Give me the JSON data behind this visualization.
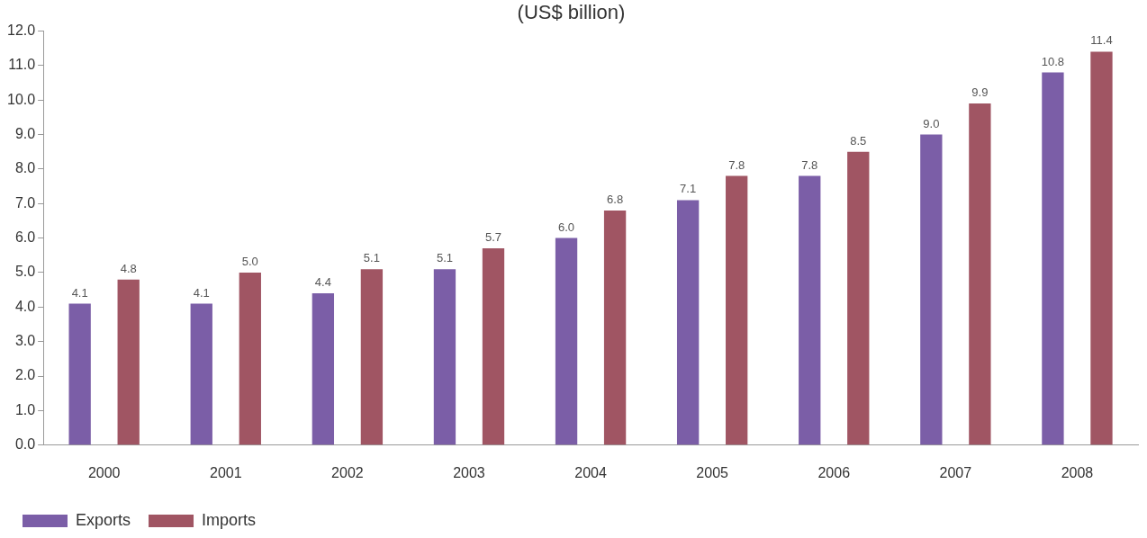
{
  "chart_data": {
    "type": "bar",
    "title": "(US$ billion)",
    "categories": [
      "2000",
      "2001",
      "2002",
      "2003",
      "2004",
      "2005",
      "2006",
      "2007",
      "2008"
    ],
    "series": [
      {
        "name": "Exports",
        "color": "#7b5ea7",
        "values": [
          4.1,
          4.1,
          4.4,
          5.1,
          6.0,
          7.1,
          7.8,
          9.0,
          10.8
        ],
        "value_labels": [
          "4.1",
          "4.1",
          "4.4",
          "5.1",
          "6.0",
          "7.1",
          "7.8",
          "9.0",
          "10.8"
        ]
      },
      {
        "name": "Imports",
        "color": "#a05563",
        "values": [
          4.8,
          5.0,
          5.1,
          5.7,
          6.8,
          7.8,
          8.5,
          9.9,
          11.4
        ],
        "value_labels": [
          "4.8",
          "5.0",
          "5.1",
          "5.7",
          "6.8",
          "7.8",
          "8.5",
          "9.9",
          "11.4"
        ]
      }
    ],
    "ylim": [
      0,
      12
    ],
    "yticks": [
      {
        "value": 0,
        "label": "0.0"
      },
      {
        "value": 1,
        "label": "1.0"
      },
      {
        "value": 2,
        "label": "2.0"
      },
      {
        "value": 3,
        "label": "3.0"
      },
      {
        "value": 4,
        "label": "4.0"
      },
      {
        "value": 5,
        "label": "5.0"
      },
      {
        "value": 6,
        "label": "6.0"
      },
      {
        "value": 7,
        "label": "7.0"
      },
      {
        "value": 8,
        "label": "8.0"
      },
      {
        "value": 9,
        "label": "9.0"
      },
      {
        "value": 10,
        "label": "10.0"
      },
      {
        "value": 11,
        "label": "11.0"
      },
      {
        "value": 12,
        "label": "12.0"
      }
    ],
    "grid": false,
    "legend": "bottom left"
  }
}
